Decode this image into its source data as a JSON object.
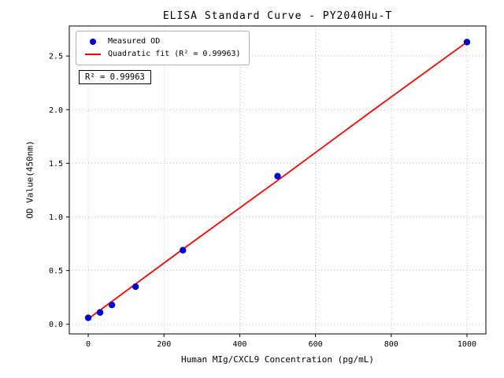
{
  "chart_data": {
    "type": "scatter",
    "title": "ELISA Standard Curve - PY2040Hu-T",
    "xlabel": "Human MIg/CXCL9 Concentration (pg/mL)",
    "ylabel": "OD Value(450nm)",
    "xlim": [
      -50,
      1050
    ],
    "ylim": [
      -0.09,
      2.78
    ],
    "xticks": [
      0,
      200,
      400,
      600,
      800,
      1000
    ],
    "yticks": [
      0.0,
      0.5,
      1.0,
      1.5,
      2.0,
      2.5
    ],
    "grid": true,
    "series": [
      {
        "name": "Measured OD",
        "type": "scatter",
        "color": "#0000cd",
        "x": [
          0,
          31.2,
          62.5,
          125,
          250,
          500,
          1000
        ],
        "y": [
          0.06,
          0.11,
          0.18,
          0.35,
          0.69,
          1.38,
          2.63
        ]
      },
      {
        "name": "Quadratic fit (R² = 0.99963)",
        "type": "line",
        "color": "#ff0000",
        "x": [
          0,
          250,
          500,
          750,
          1000
        ],
        "y": [
          0.05,
          0.7,
          1.34,
          1.99,
          2.63
        ]
      }
    ],
    "legend": {
      "position": "upper-left",
      "entries": [
        "Measured OD",
        "Quadratic fit (R² = 0.99963)"
      ]
    },
    "annotation": "R² = 0.99963",
    "r_squared": 0.99963,
    "colors": {
      "points": "#0000cd",
      "fit_line": "#ff0000",
      "frame": "#000000",
      "grid": "#9a9a9a"
    }
  }
}
